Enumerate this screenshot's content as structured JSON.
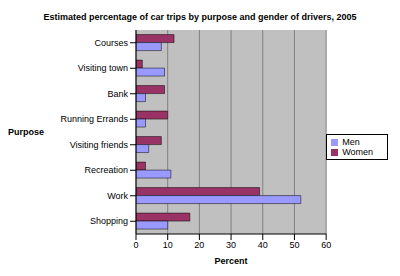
{
  "chart_data": {
    "type": "bar",
    "orientation": "horizontal",
    "title": "Estimated percentage of car trips by purpose and gender of drivers, 2005",
    "x_label": "Percent",
    "y_label": "Purpose",
    "categories": [
      "Courses",
      "Visiting town",
      "Bank",
      "Running Errands",
      "Visiting friends",
      "Recreation",
      "Work",
      "Shopping"
    ],
    "series": [
      {
        "name": "Women",
        "color": "#993366",
        "values": [
          12,
          2,
          9,
          10,
          8,
          3,
          39,
          17
        ]
      },
      {
        "name": "Men",
        "color": "#9999ff",
        "values": [
          8,
          9,
          3,
          3,
          4,
          11,
          52,
          10
        ]
      }
    ],
    "xlim": [
      0,
      60
    ],
    "xticks": [
      0,
      10,
      20,
      30,
      40,
      50,
      60
    ],
    "grid": true,
    "legend": "right"
  }
}
